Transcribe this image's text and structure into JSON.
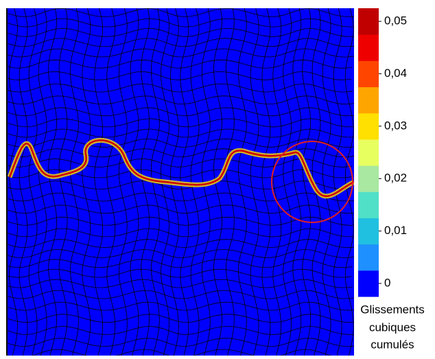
{
  "chart_data": {
    "type": "colormap",
    "colorbar_label": [
      "Glissements",
      "cubiques",
      "cumulés"
    ],
    "clim": [
      -0.0025,
      0.0525
    ],
    "colors": [
      "#0000ff",
      "#1e90ff",
      "#20c0e0",
      "#50e0c8",
      "#a8e8a0",
      "#e8ff60",
      "#ffe000",
      "#ffa500",
      "#ff4500",
      "#ee0000",
      "#c00000"
    ],
    "cticks": [
      0,
      {
        "value": 0.01,
        "label": "0,01"
      },
      {
        "value": 0.02,
        "label": "0,02"
      },
      {
        "value": 0.03,
        "label": "0,03"
      },
      {
        "value": 0.04,
        "label": "0,04"
      },
      {
        "value": 0.05,
        "label": "0,05"
      }
    ]
  }
}
